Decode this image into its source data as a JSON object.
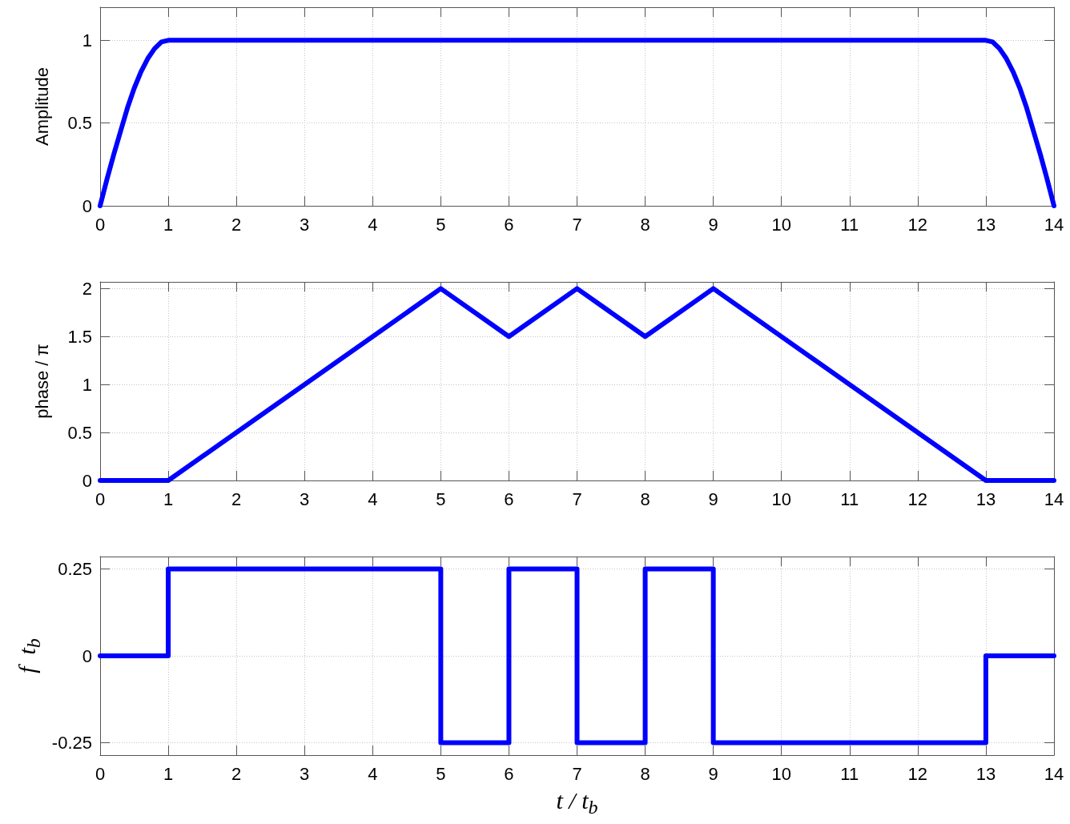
{
  "chart_data": [
    {
      "type": "line",
      "ylabel": "Amplitude",
      "x": [
        0,
        0.1,
        0.2,
        0.3,
        0.4,
        0.5,
        0.6,
        0.7,
        0.8,
        0.9,
        1,
        13,
        13.1,
        13.2,
        13.3,
        13.4,
        13.5,
        13.6,
        13.7,
        13.8,
        13.9,
        14
      ],
      "values": [
        0,
        0.16,
        0.31,
        0.45,
        0.59,
        0.71,
        0.81,
        0.89,
        0.95,
        0.99,
        1,
        1,
        0.99,
        0.95,
        0.89,
        0.81,
        0.71,
        0.59,
        0.45,
        0.31,
        0.16,
        0
      ],
      "color": "#0000ff",
      "xlim": [
        0,
        14
      ],
      "xticks": [
        0,
        1,
        2,
        3,
        4,
        5,
        6,
        7,
        8,
        9,
        10,
        11,
        12,
        13,
        14
      ],
      "ylim": [
        0,
        1.2
      ],
      "yticks": [
        0,
        0.5,
        1
      ],
      "grid": true
    },
    {
      "type": "line",
      "ylabel": "phase / π",
      "x": [
        0,
        1,
        5,
        6,
        7,
        8,
        9,
        13,
        14
      ],
      "values": [
        0,
        0,
        2,
        1.5,
        2,
        1.5,
        2,
        0,
        0
      ],
      "color": "#0000ff",
      "xlim": [
        0,
        14
      ],
      "xticks": [
        0,
        1,
        2,
        3,
        4,
        5,
        6,
        7,
        8,
        9,
        10,
        11,
        12,
        13,
        14
      ],
      "ylim": [
        0,
        2.07
      ],
      "yticks": [
        0,
        0.5,
        1,
        1.5,
        2
      ],
      "grid": true
    },
    {
      "type": "step",
      "xlabel": "t / t$_{b}$",
      "ylabel": "f  t$_{b}$",
      "x": [
        0,
        1,
        5,
        6,
        7,
        8,
        9,
        13,
        14
      ],
      "values": [
        0,
        0.25,
        -0.25,
        0.25,
        -0.25,
        0.25,
        -0.25,
        0,
        0
      ],
      "color": "#0000ff",
      "xlim": [
        0,
        14
      ],
      "xticks": [
        0,
        1,
        2,
        3,
        4,
        5,
        6,
        7,
        8,
        9,
        10,
        11,
        12,
        13,
        14
      ],
      "ylim": [
        -0.286,
        0.286
      ],
      "yticks": [
        -0.25,
        0,
        0.25
      ],
      "grid": true
    }
  ]
}
